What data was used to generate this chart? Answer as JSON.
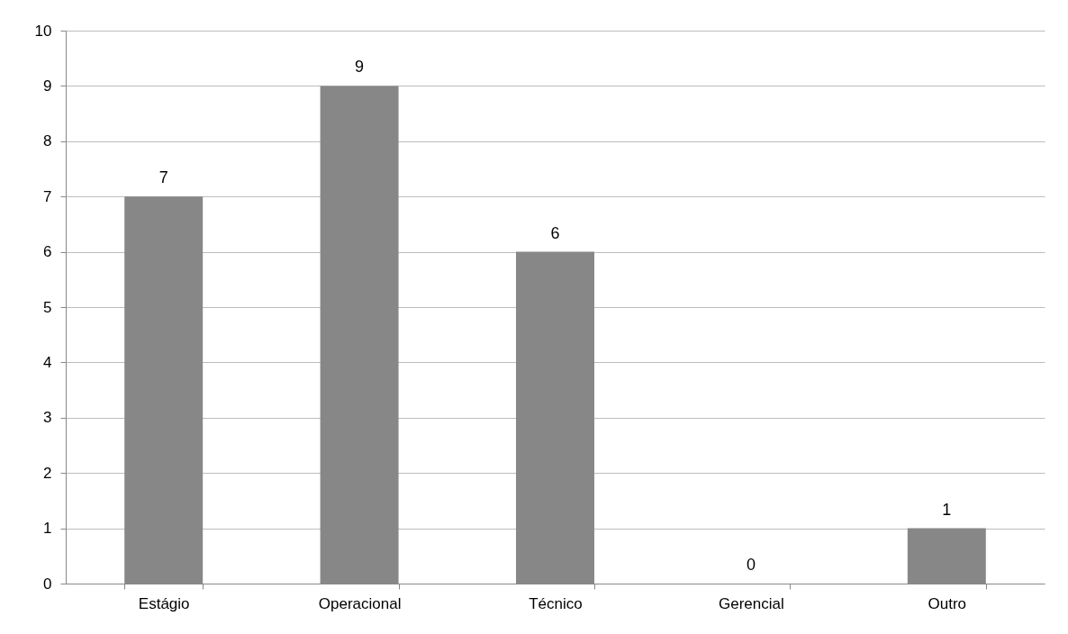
{
  "chart_data": {
    "type": "bar",
    "categories": [
      "Estágio",
      "Operacional",
      "Técnico",
      "Gerencial",
      "Outro"
    ],
    "values": [
      7,
      9,
      6,
      0,
      1
    ],
    "color": "#878787",
    "ylim": [
      0,
      10
    ],
    "yticks": [
      0,
      1,
      2,
      3,
      4,
      5,
      6,
      7,
      8,
      9,
      10
    ],
    "grid": "y",
    "data_labels": true
  }
}
